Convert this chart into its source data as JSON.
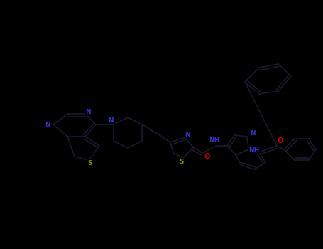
{
  "background_color": "#000000",
  "bond_color": "#1a1a2e",
  "bond_width": 1.2,
  "atom_N_color": "#3333cc",
  "atom_S_color": "#888800",
  "atom_O_color": "#cc0000",
  "atom_C_color": "#111122",
  "figsize": [
    4.55,
    3.5
  ],
  "dpi": 100,
  "xlim": [
    0,
    455
  ],
  "ylim": [
    0,
    350
  ]
}
